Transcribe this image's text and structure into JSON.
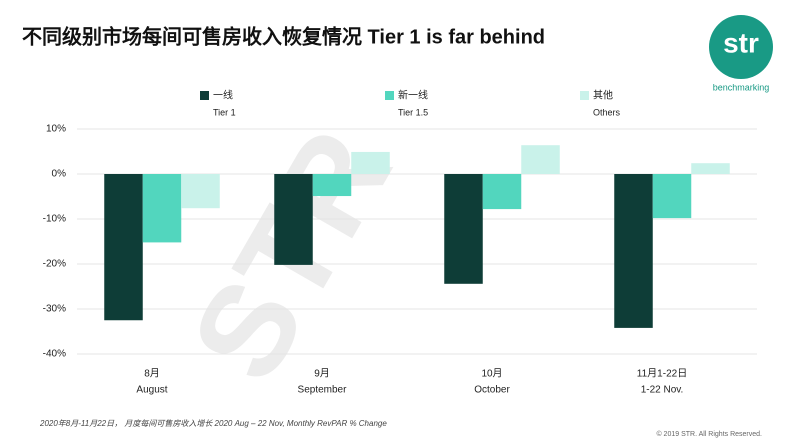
{
  "title": "不同级别市场每间可售房收入恢复情况 Tier 1 is far behind",
  "logo": {
    "text": "str",
    "tagline": "benchmarking"
  },
  "watermark": "STR",
  "chart_data": {
    "type": "bar",
    "categories": [
      "8月",
      "9月",
      "10月",
      "11月1-22日"
    ],
    "categories_en": [
      "August",
      "September",
      "October",
      "1-22 Nov."
    ],
    "series": [
      {
        "name": "一线",
        "name_en": "Tier 1",
        "color": "#0e3d37",
        "values": [
          -32.5,
          -20.2,
          -24.4,
          -34.2
        ]
      },
      {
        "name": "新一线",
        "name_en": "Tier 1.5",
        "color": "#52d6be",
        "values": [
          -15.2,
          -4.9,
          -7.8,
          -9.8
        ]
      },
      {
        "name": "其他",
        "name_en": "Others",
        "color": "#c9f2ea",
        "values": [
          -7.6,
          4.9,
          6.4,
          2.4
        ]
      }
    ],
    "ylim": [
      -40,
      10
    ],
    "yticks": [
      {
        "value": -40,
        "label": "-40%"
      },
      {
        "value": -30,
        "label": "-30%"
      },
      {
        "value": -20,
        "label": "-20%"
      },
      {
        "value": -10,
        "label": "-10%"
      },
      {
        "value": 0,
        "label": "0%"
      },
      {
        "value": 10,
        "label": "10%"
      }
    ],
    "grid": true,
    "legend": "top"
  },
  "footer": {
    "note": "2020年8月-11月22日， 月度每间可售房收入增长  2020 Aug – 22 Nov, Monthly RevPAR % Change",
    "copyright": "© 2019 STR. All Rights Reserved."
  }
}
